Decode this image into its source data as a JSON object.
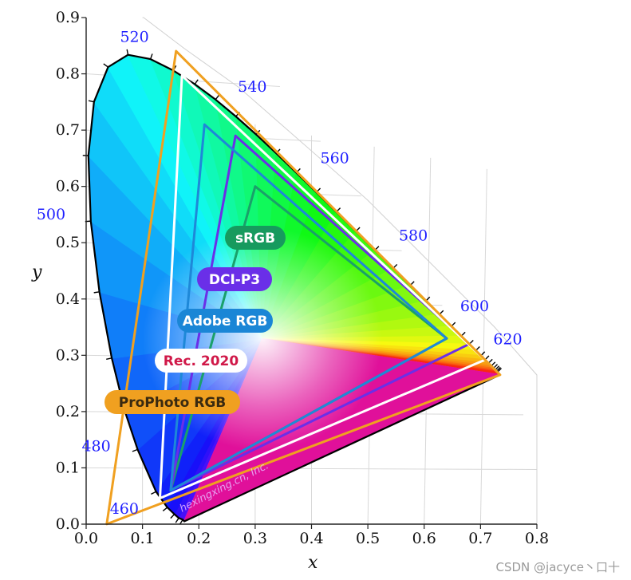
{
  "chart_data": {
    "type": "scatter",
    "title": "",
    "xlabel": "x",
    "ylabel": "y",
    "xlim": [
      0,
      0.8
    ],
    "ylim": [
      0,
      0.9
    ],
    "x_ticks": [
      "0.0",
      "0.1",
      "0.2",
      "0.3",
      "0.4",
      "0.5",
      "0.6",
      "0.7",
      "0.8"
    ],
    "y_ticks": [
      "0.0",
      "0.1",
      "0.2",
      "0.3",
      "0.4",
      "0.5",
      "0.6",
      "0.7",
      "0.8",
      "0.9"
    ],
    "grid": true,
    "spectral_locus": [
      [
        0.1741,
        0.005
      ],
      [
        0.1714,
        0.0079
      ],
      [
        0.1644,
        0.0109
      ],
      [
        0.1566,
        0.0177
      ],
      [
        0.144,
        0.0297
      ],
      [
        0.1241,
        0.0578
      ],
      [
        0.0913,
        0.1327
      ],
      [
        0.0687,
        0.2007
      ],
      [
        0.0454,
        0.295
      ],
      [
        0.0235,
        0.4127
      ],
      [
        0.0082,
        0.5384
      ],
      [
        0.0039,
        0.6548
      ],
      [
        0.0139,
        0.7502
      ],
      [
        0.0389,
        0.812
      ],
      [
        0.0743,
        0.8338
      ],
      [
        0.1142,
        0.8262
      ],
      [
        0.1547,
        0.8059
      ],
      [
        0.1929,
        0.7816
      ],
      [
        0.2296,
        0.7543
      ],
      [
        0.2658,
        0.7243
      ],
      [
        0.3016,
        0.6923
      ],
      [
        0.3373,
        0.6589
      ],
      [
        0.3731,
        0.6245
      ],
      [
        0.4087,
        0.5896
      ],
      [
        0.4441,
        0.5547
      ],
      [
        0.4788,
        0.5202
      ],
      [
        0.5125,
        0.4866
      ],
      [
        0.5448,
        0.4544
      ],
      [
        0.5752,
        0.4242
      ],
      [
        0.6029,
        0.3965
      ],
      [
        0.627,
        0.3725
      ],
      [
        0.6482,
        0.3514
      ],
      [
        0.6658,
        0.334
      ],
      [
        0.6801,
        0.3197
      ],
      [
        0.6915,
        0.3083
      ],
      [
        0.7006,
        0.2993
      ],
      [
        0.7079,
        0.292
      ],
      [
        0.714,
        0.2859
      ],
      [
        0.719,
        0.2809
      ],
      [
        0.723,
        0.277
      ],
      [
        0.726,
        0.274
      ],
      [
        0.7283,
        0.2717
      ],
      [
        0.73,
        0.27
      ],
      [
        0.7347,
        0.2653
      ]
    ],
    "wavelength_labels": [
      {
        "nm": "460",
        "x": 0.144,
        "y": 0.0297
      },
      {
        "nm": "480",
        "x": 0.0913,
        "y": 0.1327
      },
      {
        "nm": "500",
        "x": 0.0082,
        "y": 0.5384
      },
      {
        "nm": "520",
        "x": 0.0743,
        "y": 0.8338
      },
      {
        "nm": "540",
        "x": 0.2296,
        "y": 0.7543
      },
      {
        "nm": "560",
        "x": 0.3731,
        "y": 0.6245
      },
      {
        "nm": "580",
        "x": 0.5125,
        "y": 0.4866
      },
      {
        "nm": "600",
        "x": 0.627,
        "y": 0.3725
      },
      {
        "nm": "620",
        "x": 0.6915,
        "y": 0.3083
      }
    ],
    "gamuts": [
      {
        "name": "sRGB",
        "color": "#1aa06a",
        "points": [
          [
            0.64,
            0.33
          ],
          [
            0.3,
            0.6
          ],
          [
            0.15,
            0.06
          ]
        ]
      },
      {
        "name": "DCI-P3",
        "color": "#6a2fe8",
        "points": [
          [
            0.68,
            0.32
          ],
          [
            0.265,
            0.69
          ],
          [
            0.15,
            0.06
          ]
        ]
      },
      {
        "name": "Adobe RGB",
        "color": "#1e88d8",
        "points": [
          [
            0.64,
            0.33
          ],
          [
            0.21,
            0.71
          ],
          [
            0.15,
            0.06
          ]
        ]
      },
      {
        "name": "Rec. 2020",
        "color": "#ffffff",
        "points": [
          [
            0.708,
            0.292
          ],
          [
            0.17,
            0.797
          ],
          [
            0.131,
            0.046
          ]
        ]
      },
      {
        "name": "ProPhoto RGB",
        "color": "#f0a020",
        "points": [
          [
            0.7347,
            0.2653
          ],
          [
            0.1596,
            0.8404
          ],
          [
            0.0366,
            0.0001
          ]
        ]
      }
    ],
    "legend_labels": [
      {
        "text": "sRGB",
        "bg": "#179a5e",
        "fg": "#ffffff"
      },
      {
        "text": "DCI-P3",
        "bg": "#6a2fe8",
        "fg": "#ffffff"
      },
      {
        "text": "Adobe RGB",
        "bg": "#1a86d6",
        "fg": "#ffffff"
      },
      {
        "text": "Rec. 2020",
        "bg": "#ffffff",
        "fg": "#d01848"
      },
      {
        "text": "ProPhoto RGB",
        "bg": "#f0a020",
        "fg": "#3a2a10"
      }
    ],
    "watermark": "hexingxing.cn, Inc."
  },
  "credit": "CSDN @jacyce丶口十"
}
